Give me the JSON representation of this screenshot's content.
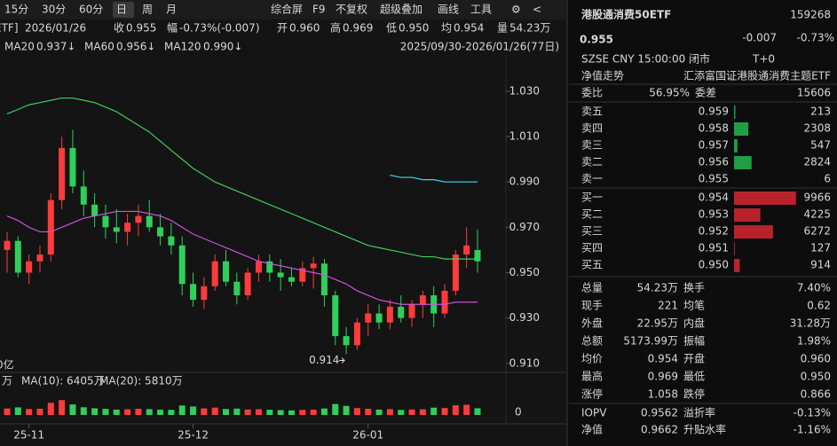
{
  "toolbar": {
    "periods": [
      "15分",
      "30分",
      "60分",
      "日",
      "周",
      "月"
    ],
    "active": "日",
    "tools": [
      "综合屏",
      "F9",
      "不复权",
      "超级叠加",
      "画线",
      "工具"
    ]
  },
  "info_bar": {
    "date": "2026/01/26",
    "fields": [
      {
        "label": "收",
        "value": "0.955",
        "color": "#2fd05a"
      },
      {
        "label": "幅",
        "value": "-0.73%(-0.007)",
        "color": "#2fd05a"
      },
      {
        "label": "开",
        "value": "0.960",
        "color": "#2fd05a"
      },
      {
        "label": "高",
        "value": "0.969",
        "color": "#ff4d4d"
      },
      {
        "label": "低",
        "value": "0.950",
        "color": "#2fd05a"
      },
      {
        "label": "均",
        "value": "0.954",
        "color": "#2fd05a"
      },
      {
        "label": "量",
        "value": "54.23万",
        "color": "#dddddd"
      }
    ],
    "range": "2025/09/30-2026/01/26(77日)",
    "left_cut": "ETF]"
  },
  "chart_data": {
    "type": "candlestick",
    "ohlc": [
      [
        0.96,
        0.968,
        0.95,
        0.964
      ],
      [
        0.964,
        0.966,
        0.948,
        0.95
      ],
      [
        0.95,
        0.958,
        0.945,
        0.955
      ],
      [
        0.955,
        0.962,
        0.95,
        0.958
      ],
      [
        0.958,
        0.985,
        0.955,
        0.982
      ],
      [
        0.982,
        1.01,
        0.978,
        1.005
      ],
      [
        1.005,
        1.013,
        0.985,
        0.988
      ],
      [
        0.988,
        0.995,
        0.975,
        0.98
      ],
      [
        0.98,
        0.985,
        0.97,
        0.975
      ],
      [
        0.975,
        0.98,
        0.965,
        0.97
      ],
      [
        0.97,
        0.978,
        0.963,
        0.968
      ],
      [
        0.968,
        0.976,
        0.962,
        0.972
      ],
      [
        0.972,
        0.98,
        0.966,
        0.975
      ],
      [
        0.975,
        0.982,
        0.968,
        0.97
      ],
      [
        0.97,
        0.976,
        0.962,
        0.966
      ],
      [
        0.966,
        0.972,
        0.958,
        0.962
      ],
      [
        0.962,
        0.966,
        0.94,
        0.945
      ],
      [
        0.945,
        0.95,
        0.935,
        0.938
      ],
      [
        0.938,
        0.948,
        0.934,
        0.944
      ],
      [
        0.944,
        0.958,
        0.942,
        0.955
      ],
      [
        0.955,
        0.96,
        0.944,
        0.946
      ],
      [
        0.946,
        0.95,
        0.936,
        0.94
      ],
      [
        0.94,
        0.952,
        0.938,
        0.95
      ],
      [
        0.95,
        0.958,
        0.946,
        0.955
      ],
      [
        0.955,
        0.958,
        0.946,
        0.95
      ],
      [
        0.95,
        0.956,
        0.942,
        0.948
      ],
      [
        0.948,
        0.952,
        0.944,
        0.946
      ],
      [
        0.946,
        0.955,
        0.944,
        0.952
      ],
      [
        0.952,
        0.957,
        0.943,
        0.954
      ],
      [
        0.954,
        0.956,
        0.935,
        0.94
      ],
      [
        0.94,
        0.942,
        0.918,
        0.922
      ],
      [
        0.922,
        0.926,
        0.914,
        0.918
      ],
      [
        0.918,
        0.93,
        0.916,
        0.928
      ],
      [
        0.928,
        0.936,
        0.922,
        0.932
      ],
      [
        0.932,
        0.936,
        0.925,
        0.928
      ],
      [
        0.928,
        0.938,
        0.925,
        0.935
      ],
      [
        0.935,
        0.94,
        0.928,
        0.93
      ],
      [
        0.93,
        0.938,
        0.926,
        0.936
      ],
      [
        0.936,
        0.942,
        0.93,
        0.94
      ],
      [
        0.94,
        0.944,
        0.926,
        0.932
      ],
      [
        0.932,
        0.945,
        0.93,
        0.942
      ],
      [
        0.942,
        0.96,
        0.94,
        0.958
      ],
      [
        0.958,
        0.97,
        0.952,
        0.962
      ],
      [
        0.96,
        0.969,
        0.95,
        0.955
      ]
    ],
    "up_color": "#ff3b3b",
    "down_color": "#2fd05a",
    "series": [
      {
        "name": "MA20",
        "color": "#d050e0",
        "label": "0.937↓",
        "values": [
          0.975,
          0.973,
          0.97,
          0.968,
          0.968,
          0.97,
          0.972,
          0.974,
          0.975,
          0.976,
          0.977,
          0.977,
          0.977,
          0.976,
          0.975,
          0.973,
          0.97,
          0.967,
          0.965,
          0.963,
          0.961,
          0.959,
          0.957,
          0.955,
          0.954,
          0.953,
          0.952,
          0.951,
          0.95,
          0.949,
          0.947,
          0.945,
          0.942,
          0.94,
          0.938,
          0.937,
          0.936,
          0.936,
          0.936,
          0.936,
          0.936,
          0.937,
          0.937,
          0.937
        ]
      },
      {
        "name": "MA60",
        "color": "#3ccf5a",
        "label": "0.956↓",
        "values": [
          1.02,
          1.022,
          1.024,
          1.025,
          1.026,
          1.027,
          1.027,
          1.026,
          1.025,
          1.023,
          1.021,
          1.018,
          1.015,
          1.012,
          1.008,
          1.004,
          1.0,
          0.996,
          0.993,
          0.99,
          0.988,
          0.986,
          0.984,
          0.982,
          0.98,
          0.978,
          0.976,
          0.974,
          0.972,
          0.97,
          0.968,
          0.966,
          0.964,
          0.962,
          0.961,
          0.96,
          0.959,
          0.958,
          0.957,
          0.957,
          0.956,
          0.956,
          0.956,
          0.956
        ]
      },
      {
        "name": "MA120",
        "color": "#40d8e8",
        "label": "0.990↓",
        "values": [
          null,
          null,
          null,
          null,
          null,
          null,
          null,
          null,
          null,
          null,
          null,
          null,
          null,
          null,
          null,
          null,
          null,
          null,
          null,
          null,
          null,
          null,
          null,
          null,
          null,
          null,
          null,
          null,
          null,
          null,
          null,
          null,
          null,
          null,
          null,
          0.993,
          0.992,
          0.992,
          0.991,
          0.991,
          0.99,
          0.99,
          0.99,
          0.99
        ]
      }
    ],
    "ylim": [
      0.906,
      1.046
    ],
    "yticks": [
      {
        "value": 1.03,
        "label": "1.030"
      },
      {
        "value": 1.01,
        "label": "1.010"
      },
      {
        "value": 0.99,
        "label": "0.990"
      },
      {
        "value": 0.97,
        "label": "0.970"
      },
      {
        "value": 0.95,
        "label": "0.950"
      },
      {
        "value": 0.93,
        "label": "0.930"
      },
      {
        "value": 0.91,
        "label": "0.910"
      }
    ],
    "xticks": [
      {
        "value": 2,
        "label": "25-11"
      },
      {
        "value": 17,
        "label": "25-12"
      },
      {
        "value": 33,
        "label": "26-01"
      }
    ],
    "low_annotation": {
      "index": 31,
      "value": 0.914
    },
    "volume": {
      "values": [
        5200,
        6100,
        4800,
        5000,
        9800,
        12000,
        8500,
        6200,
        5400,
        4900,
        4300,
        4600,
        5000,
        4700,
        4200,
        4100,
        7600,
        6800,
        5300,
        5900,
        4800,
        5100,
        4400,
        4600,
        4200,
        3900,
        3700,
        4100,
        4300,
        5200,
        8800,
        7300,
        5600,
        5000,
        4300,
        4700,
        4100,
        4400,
        4600,
        5900,
        5600,
        7800,
        8200,
        5423
      ],
      "ylim": [
        0,
        20000
      ],
      "yticks": [
        0
      ],
      "unit_cut": "万",
      "left_cut": "0亿",
      "ma_labels": [
        {
          "text": "MA(10): 6405万",
          "color": "#e8c020"
        },
        {
          "text": "MA(20): 5810万",
          "color": "#d050e0"
        }
      ]
    }
  },
  "quote": {
    "name": "港股通消费50ETF",
    "code": "159268",
    "price": "0.955",
    "change": "-0.007",
    "change_pct": "-0.73%",
    "meta": "SZSE  CNY  15:00:00  闭市",
    "t0": "T+0",
    "nav_link": "净值走势",
    "fund_name": "汇添富国证港股通消费主题ETF",
    "ratio": {
      "label": "委比",
      "value": "56.95%",
      "label2": "委差",
      "value2": "15606"
    },
    "asks": [
      {
        "label": "卖五",
        "price": "0.959",
        "volume": 213
      },
      {
        "label": "卖四",
        "price": "0.958",
        "volume": 2308
      },
      {
        "label": "卖三",
        "price": "0.957",
        "volume": 547
      },
      {
        "label": "卖二",
        "price": "0.956",
        "volume": 2824
      },
      {
        "label": "卖一",
        "price": "0.955",
        "volume": 6
      }
    ],
    "bids": [
      {
        "label": "买一",
        "price": "0.954",
        "volume": 9966
      },
      {
        "label": "买二",
        "price": "0.953",
        "volume": 4225
      },
      {
        "label": "买三",
        "price": "0.952",
        "volume": 6272
      },
      {
        "label": "买四",
        "price": "0.951",
        "volume": 127
      },
      {
        "label": "买五",
        "price": "0.950",
        "volume": 914
      }
    ],
    "stats": [
      [
        {
          "label": "总量",
          "value": "54.23万",
          "color": "#dddddd"
        },
        {
          "label": "换手",
          "value": "7.40%",
          "color": "#dddddd"
        }
      ],
      [
        {
          "label": "现手",
          "value": "221",
          "color": "#dddddd"
        },
        {
          "label": "均笔",
          "value": "0.62",
          "color": "#dddddd"
        }
      ],
      [
        {
          "label": "外盘",
          "value": "22.95万",
          "color": "#ff4d4d"
        },
        {
          "label": "内盘",
          "value": "31.28万",
          "color": "#2fd05a"
        }
      ],
      [
        {
          "label": "总额",
          "value": "5173.99万",
          "color": "#dddddd"
        },
        {
          "label": "振幅",
          "value": "1.98%",
          "color": "#dddddd"
        }
      ],
      [
        {
          "label": "均价",
          "value": "0.954",
          "color": "#2fd05a"
        },
        {
          "label": "开盘",
          "value": "0.960",
          "color": "#2fd05a"
        }
      ],
      [
        {
          "label": "最高",
          "value": "0.969",
          "color": "#ff4d4d"
        },
        {
          "label": "最低",
          "value": "0.950",
          "color": "#2fd05a"
        }
      ],
      [
        {
          "label": "涨停",
          "value": "1.058",
          "color": "#ff4d4d"
        },
        {
          "label": "跌停",
          "value": "0.866",
          "color": "#2fd05a"
        }
      ],
      [
        {
          "label": "IOPV",
          "value": "0.9562",
          "color": "#dddddd"
        },
        {
          "label": "溢折率",
          "value": "-0.13%",
          "color": "#2fd05a"
        }
      ],
      [
        {
          "label": "净值",
          "value": "0.9662",
          "color": "#dddddd"
        },
        {
          "label": "升贴水率",
          "value": "-1.16%",
          "color": "#2fd05a"
        }
      ]
    ]
  }
}
